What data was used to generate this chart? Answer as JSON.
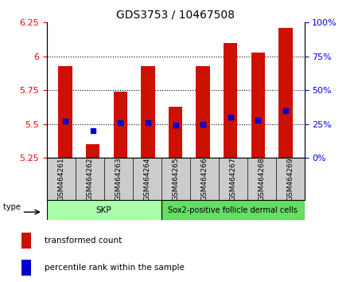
{
  "title": "GDS3753 / 10467508",
  "samples": [
    "GSM464261",
    "GSM464262",
    "GSM464263",
    "GSM464264",
    "GSM464265",
    "GSM464266",
    "GSM464267",
    "GSM464268",
    "GSM464269"
  ],
  "transformed_count": [
    5.93,
    5.35,
    5.74,
    5.93,
    5.63,
    5.93,
    6.1,
    6.03,
    6.21
  ],
  "percentile_rank": [
    27,
    20,
    26,
    26,
    24,
    25,
    30,
    28,
    35
  ],
  "ylim_left": [
    5.25,
    6.25
  ],
  "ylim_right": [
    0,
    100
  ],
  "yticks_left": [
    5.25,
    5.5,
    5.75,
    6.0,
    6.25
  ],
  "yticks_right": [
    0,
    25,
    50,
    75,
    100
  ],
  "bar_color": "#cc1100",
  "marker_color": "#0000cc",
  "bar_bottom": 5.25,
  "skp_color": "#aaffaa",
  "sox2_color": "#66dd66",
  "legend_items": [
    {
      "label": "transformed count",
      "color": "#cc1100"
    },
    {
      "label": "percentile rank within the sample",
      "color": "#0000cc"
    }
  ],
  "cell_type_label": "cell type",
  "bar_width": 0.5,
  "skp_count": 4,
  "sox2_count": 5,
  "skp_label": "SKP",
  "sox2_label": "Sox2-positive follicle dermal cells"
}
